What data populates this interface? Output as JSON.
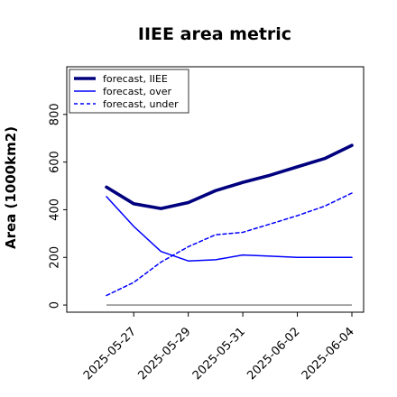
{
  "chart_data": {
    "type": "line",
    "title": "IIEE area metric",
    "xlabel": "",
    "ylabel": "Area (1000km2)",
    "x": [
      "2025-05-26",
      "2025-05-27",
      "2025-05-28",
      "2025-05-29",
      "2025-05-30",
      "2025-05-31",
      "2025-06-01",
      "2025-06-02",
      "2025-06-03",
      "2025-06-04"
    ],
    "xticks": [
      "2025-05-27",
      "2025-05-29",
      "2025-05-31",
      "2025-06-02",
      "2025-06-04"
    ],
    "highlight_tick": "2025-05-27",
    "highlight_color": "#228b22",
    "ylim": [
      -30,
      1000
    ],
    "yticks": [
      0,
      200,
      400,
      600,
      800
    ],
    "grid": false,
    "legend": "top-left",
    "reference_line": {
      "value": 0,
      "color": "#808080"
    },
    "series": [
      {
        "name": "forecast, IIEE",
        "color": "#00007f",
        "style": "solid-thick",
        "values": [
          495,
          425,
          405,
          430,
          480,
          515,
          545,
          580,
          615,
          670
        ]
      },
      {
        "name": "forecast, over",
        "color": "#0000ff",
        "style": "solid",
        "values": [
          455,
          330,
          225,
          185,
          190,
          210,
          205,
          200,
          200,
          200
        ]
      },
      {
        "name": "forecast, under",
        "color": "#0000ff",
        "style": "dashed",
        "values": [
          40,
          95,
          180,
          245,
          295,
          305,
          340,
          375,
          415,
          470
        ]
      }
    ]
  }
}
